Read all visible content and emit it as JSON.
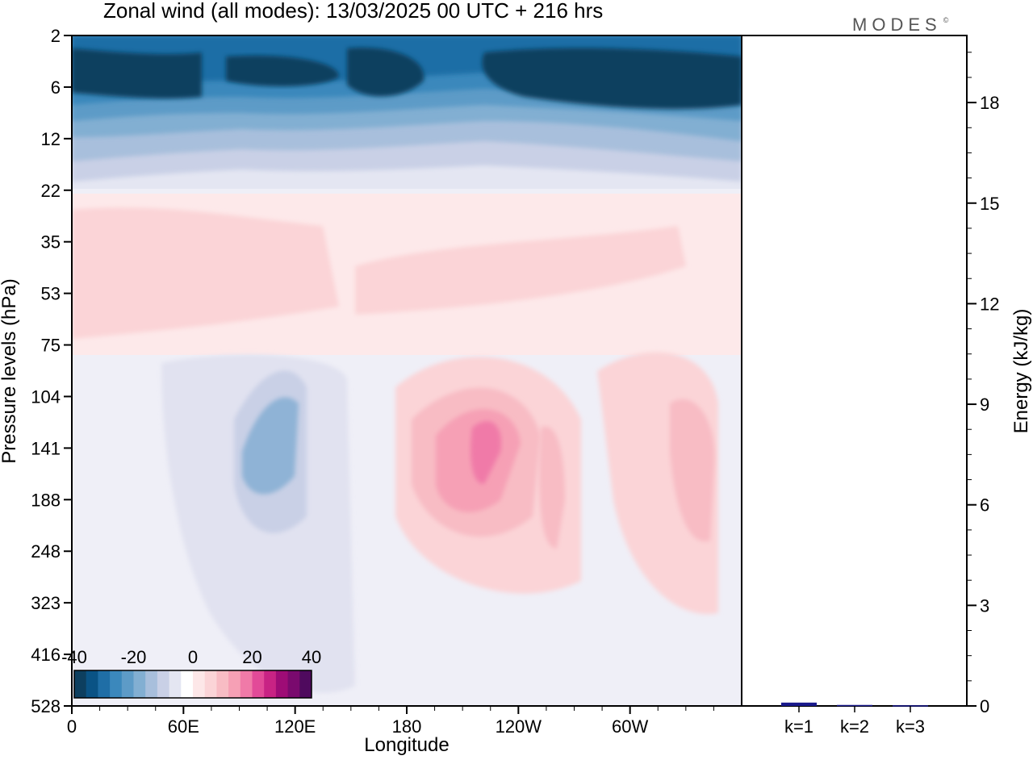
{
  "header": {
    "title": "Zonal wind (all modes):  13/03/2025  00 UTC  + 216 hrs",
    "logo": "MODES",
    "logo_mark": "©"
  },
  "chart_data": [
    {
      "type": "heatmap",
      "title": "Zonal wind (all modes):  13/03/2025  00 UTC  + 216 hrs",
      "xlabel": "Longitude",
      "ylabel": "Pressure levels (hPa)",
      "x_ticks": [
        "0",
        "60E",
        "120E",
        "180",
        "120W",
        "60W"
      ],
      "y_ticks": [
        "2",
        "6",
        "12",
        "22",
        "35",
        "53",
        "75",
        "104",
        "141",
        "188",
        "248",
        "323",
        "416",
        "528"
      ],
      "colorbar": {
        "ticks": [
          "-40",
          "-20",
          "0",
          "20",
          "40"
        ],
        "range": [
          -40,
          40
        ],
        "colors": [
          "#0d3f5f",
          "#0a5385",
          "#1f6ea6",
          "#3b88bc",
          "#5d9bc7",
          "#82afd2",
          "#a8bfdc",
          "#c9d0e6",
          "#e4e6f2",
          "#ffffff",
          "#fde7e8",
          "#fbd4d7",
          "#f8bcc4",
          "#f6a0b5",
          "#f07aa8",
          "#e24a98",
          "#c82384",
          "#9e0c76",
          "#7a0a6e",
          "#4f0a5e"
        ]
      }
    },
    {
      "type": "bar",
      "ylabel": "Energy (kJ/kg)",
      "categories": [
        "k=1",
        "k=2",
        "k=3"
      ],
      "values": [
        0.1,
        0.03,
        0.02
      ],
      "ylim": [
        0,
        20
      ],
      "y_ticks": [
        "0",
        "3",
        "6",
        "9",
        "12",
        "15",
        "18"
      ],
      "bar_color": "#1a1a8c"
    }
  ]
}
